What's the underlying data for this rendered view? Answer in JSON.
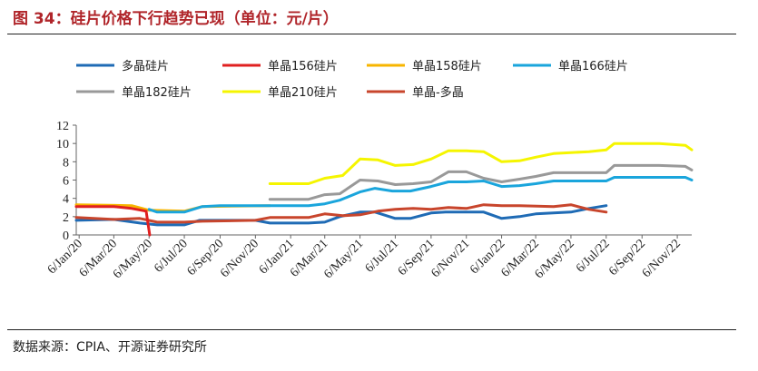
{
  "title": "图 34：硅片价格下行趋势已现（单位：元/片）",
  "source": "数据来源：CPIA、开源证券研究所",
  "chart_data": {
    "type": "line",
    "title": "图 34：硅片价格下行趋势已现（单位：元/片）",
    "xlabel": "",
    "ylabel": "",
    "ylim": [
      0,
      12
    ],
    "yticks": [
      0,
      2,
      4,
      6,
      8,
      10,
      12
    ],
    "xticks": [
      "6/Jan/20",
      "6/Mar/20",
      "6/May/20",
      "6/Jul/20",
      "6/Sep/20",
      "6/Nov/20",
      "6/Jan/21",
      "6/Mar/21",
      "6/May/21",
      "6/Jul/21",
      "6/Sep/21",
      "6/Nov/21",
      "6/Jan/22",
      "6/Mar/22",
      "6/May/22",
      "6/Jul/22",
      "6/Sep/22",
      "6/Nov/22"
    ],
    "x_range": [
      "2020-01-01",
      "2022-12-01"
    ],
    "grid": false,
    "legend_position": "top",
    "series": [
      {
        "name": "多晶硅片",
        "color": "#1f6bb5",
        "points": [
          [
            "2020-01-01",
            1.6
          ],
          [
            "2020-03-06",
            1.7
          ],
          [
            "2020-04-20",
            1.3
          ],
          [
            "2020-05-20",
            1.1
          ],
          [
            "2020-07-06",
            1.1
          ],
          [
            "2020-08-01",
            1.6
          ],
          [
            "2020-10-01",
            1.6
          ],
          [
            "2020-11-06",
            1.6
          ],
          [
            "2020-12-01",
            1.3
          ],
          [
            "2021-02-06",
            1.3
          ],
          [
            "2021-03-06",
            1.4
          ],
          [
            "2021-04-01",
            2.0
          ],
          [
            "2021-05-06",
            2.5
          ],
          [
            "2021-06-01",
            2.5
          ],
          [
            "2021-07-06",
            1.8
          ],
          [
            "2021-08-01",
            1.8
          ],
          [
            "2021-09-06",
            2.4
          ],
          [
            "2021-10-01",
            2.5
          ],
          [
            "2021-11-06",
            2.5
          ],
          [
            "2021-12-06",
            2.5
          ],
          [
            "2022-01-06",
            1.8
          ],
          [
            "2022-02-06",
            2.0
          ],
          [
            "2022-03-06",
            2.3
          ],
          [
            "2022-05-06",
            2.5
          ],
          [
            "2022-06-06",
            2.9
          ],
          [
            "2022-07-06",
            3.2
          ]
        ]
      },
      {
        "name": "单晶156硅片",
        "color": "#e02020",
        "points": [
          [
            "2020-01-01",
            3.1
          ],
          [
            "2020-03-06",
            3.1
          ],
          [
            "2020-04-06",
            2.9
          ],
          [
            "2020-05-01",
            2.6
          ],
          [
            "2020-05-07",
            0.0
          ]
        ]
      },
      {
        "name": "单晶158硅片",
        "color": "#f7b500",
        "points": [
          [
            "2020-01-01",
            3.3
          ],
          [
            "2020-04-06",
            3.2
          ],
          [
            "2020-05-06",
            2.7
          ],
          [
            "2020-07-06",
            2.6
          ],
          [
            "2020-08-06",
            3.1
          ],
          [
            "2020-12-01",
            3.2
          ]
        ]
      },
      {
        "name": "单晶166硅片",
        "color": "#1aa5dc",
        "points": [
          [
            "2020-05-06",
            2.8
          ],
          [
            "2020-05-20",
            2.5
          ],
          [
            "2020-07-06",
            2.5
          ],
          [
            "2020-08-06",
            3.1
          ],
          [
            "2020-09-06",
            3.2
          ],
          [
            "2020-12-01",
            3.2
          ],
          [
            "2021-02-06",
            3.2
          ],
          [
            "2021-03-06",
            3.4
          ],
          [
            "2021-04-01",
            3.8
          ],
          [
            "2021-05-06",
            4.7
          ],
          [
            "2021-06-01",
            5.1
          ],
          [
            "2021-07-01",
            4.8
          ],
          [
            "2021-08-01",
            4.8
          ],
          [
            "2021-09-06",
            5.3
          ],
          [
            "2021-10-06",
            5.8
          ],
          [
            "2021-11-06",
            5.8
          ],
          [
            "2021-12-06",
            5.9
          ],
          [
            "2022-01-06",
            5.3
          ],
          [
            "2022-02-06",
            5.4
          ],
          [
            "2022-03-06",
            5.6
          ],
          [
            "2022-04-06",
            5.9
          ],
          [
            "2022-06-06",
            5.9
          ],
          [
            "2022-07-06",
            5.9
          ],
          [
            "2022-07-20",
            6.3
          ],
          [
            "2022-10-06",
            6.3
          ],
          [
            "2022-11-20",
            6.3
          ],
          [
            "2022-12-01",
            6.0
          ]
        ]
      },
      {
        "name": "单晶182硅片",
        "color": "#999999",
        "points": [
          [
            "2020-12-01",
            3.9
          ],
          [
            "2021-02-06",
            3.9
          ],
          [
            "2021-03-06",
            4.4
          ],
          [
            "2021-04-01",
            4.5
          ],
          [
            "2021-05-06",
            6.0
          ],
          [
            "2021-06-06",
            5.9
          ],
          [
            "2021-07-06",
            5.5
          ],
          [
            "2021-08-06",
            5.6
          ],
          [
            "2021-09-06",
            5.8
          ],
          [
            "2021-10-06",
            6.9
          ],
          [
            "2021-11-06",
            6.9
          ],
          [
            "2021-12-06",
            6.2
          ],
          [
            "2022-01-06",
            5.8
          ],
          [
            "2022-02-06",
            6.1
          ],
          [
            "2022-03-06",
            6.4
          ],
          [
            "2022-04-06",
            6.8
          ],
          [
            "2022-06-06",
            6.8
          ],
          [
            "2022-07-06",
            6.8
          ],
          [
            "2022-07-20",
            7.6
          ],
          [
            "2022-10-06",
            7.6
          ],
          [
            "2022-11-20",
            7.5
          ],
          [
            "2022-12-01",
            7.1
          ]
        ]
      },
      {
        "name": "单晶210硅片",
        "color": "#f5f500",
        "points": [
          [
            "2020-12-01",
            5.6
          ],
          [
            "2021-02-06",
            5.6
          ],
          [
            "2021-03-06",
            6.2
          ],
          [
            "2021-04-06",
            6.5
          ],
          [
            "2021-05-06",
            8.3
          ],
          [
            "2021-06-06",
            8.2
          ],
          [
            "2021-07-06",
            7.6
          ],
          [
            "2021-08-06",
            7.7
          ],
          [
            "2021-09-06",
            8.3
          ],
          [
            "2021-10-06",
            9.2
          ],
          [
            "2021-11-06",
            9.2
          ],
          [
            "2021-12-06",
            9.1
          ],
          [
            "2022-01-06",
            8.0
          ],
          [
            "2022-02-06",
            8.1
          ],
          [
            "2022-03-06",
            8.5
          ],
          [
            "2022-04-06",
            8.9
          ],
          [
            "2022-06-06",
            9.1
          ],
          [
            "2022-07-06",
            9.3
          ],
          [
            "2022-07-20",
            10.0
          ],
          [
            "2022-10-06",
            10.0
          ],
          [
            "2022-11-20",
            9.8
          ],
          [
            "2022-12-01",
            9.3
          ]
        ]
      },
      {
        "name": "单晶-多晶",
        "color": "#c8452c",
        "points": [
          [
            "2020-01-01",
            1.9
          ],
          [
            "2020-03-06",
            1.7
          ],
          [
            "2020-04-20",
            1.8
          ],
          [
            "2020-05-20",
            1.4
          ],
          [
            "2020-07-06",
            1.4
          ],
          [
            "2020-08-06",
            1.5
          ],
          [
            "2020-11-06",
            1.6
          ],
          [
            "2020-12-01",
            1.9
          ],
          [
            "2021-02-06",
            1.9
          ],
          [
            "2021-03-06",
            2.3
          ],
          [
            "2021-04-06",
            2.1
          ],
          [
            "2021-05-06",
            2.2
          ],
          [
            "2021-06-06",
            2.6
          ],
          [
            "2021-07-06",
            2.8
          ],
          [
            "2021-08-06",
            2.9
          ],
          [
            "2021-09-06",
            2.8
          ],
          [
            "2021-10-06",
            3.0
          ],
          [
            "2021-11-06",
            2.9
          ],
          [
            "2021-12-06",
            3.3
          ],
          [
            "2022-01-06",
            3.2
          ],
          [
            "2022-02-06",
            3.2
          ],
          [
            "2022-04-06",
            3.1
          ],
          [
            "2022-05-06",
            3.3
          ],
          [
            "2022-06-06",
            2.8
          ],
          [
            "2022-07-06",
            2.5
          ]
        ]
      }
    ]
  }
}
